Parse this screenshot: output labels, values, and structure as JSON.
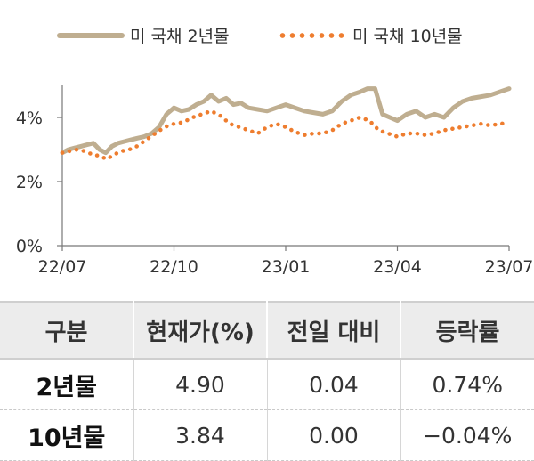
{
  "chart_data": {
    "type": "line",
    "xlabel": "",
    "ylabel": "",
    "x_ticks": [
      "22/07",
      "22/10",
      "23/01",
      "23/04",
      "23/07"
    ],
    "y_ticks": [
      "0%",
      "2%",
      "4%"
    ],
    "ylim": [
      0,
      5
    ],
    "legend_position": "top",
    "grid": false,
    "series": [
      {
        "name": "미 국채 2년물",
        "color": "#bfae90",
        "style": "solid",
        "points": [
          [
            "22/07",
            2.9
          ],
          [
            "22/07",
            3.0
          ],
          [
            "22/07",
            3.05
          ],
          [
            "22/07",
            3.1
          ],
          [
            "22/07",
            3.15
          ],
          [
            "22/07",
            3.2
          ],
          [
            "22/08",
            3.0
          ],
          [
            "22/08",
            2.9
          ],
          [
            "22/08",
            3.1
          ],
          [
            "22/08",
            3.2
          ],
          [
            "22/08",
            3.25
          ],
          [
            "22/08",
            3.3
          ],
          [
            "22/09",
            3.35
          ],
          [
            "22/09",
            3.4
          ],
          [
            "22/09",
            3.5
          ],
          [
            "22/09",
            3.7
          ],
          [
            "22/09",
            4.1
          ],
          [
            "22/10",
            4.3
          ],
          [
            "22/10",
            4.2
          ],
          [
            "22/10",
            4.25
          ],
          [
            "22/10",
            4.4
          ],
          [
            "22/10",
            4.5
          ],
          [
            "22/11",
            4.7
          ],
          [
            "22/11",
            4.5
          ],
          [
            "22/11",
            4.6
          ],
          [
            "22/11",
            4.4
          ],
          [
            "22/11",
            4.45
          ],
          [
            "22/12",
            4.3
          ],
          [
            "22/12",
            4.25
          ],
          [
            "22/12",
            4.2
          ],
          [
            "22/12",
            4.3
          ],
          [
            "23/01",
            4.4
          ],
          [
            "23/01",
            4.3
          ],
          [
            "23/01",
            4.2
          ],
          [
            "23/01",
            4.15
          ],
          [
            "23/02",
            4.1
          ],
          [
            "23/02",
            4.2
          ],
          [
            "23/02",
            4.5
          ],
          [
            "23/02",
            4.7
          ],
          [
            "23/03",
            4.8
          ],
          [
            "23/03",
            4.9
          ],
          [
            "23/03",
            4.9
          ],
          [
            "23/03",
            4.1
          ],
          [
            "23/03",
            4.0
          ],
          [
            "23/04",
            3.9
          ],
          [
            "23/04",
            4.1
          ],
          [
            "23/04",
            4.2
          ],
          [
            "23/04",
            4.0
          ],
          [
            "23/05",
            4.1
          ],
          [
            "23/05",
            4.0
          ],
          [
            "23/05",
            4.3
          ],
          [
            "23/05",
            4.5
          ],
          [
            "23/06",
            4.6
          ],
          [
            "23/06",
            4.65
          ],
          [
            "23/06",
            4.7
          ],
          [
            "23/06",
            4.8
          ],
          [
            "23/07",
            4.9
          ]
        ]
      },
      {
        "name": "미 국채 10년물",
        "color": "#ee7d2f",
        "style": "dotted",
        "points": [
          [
            "22/07",
            2.9
          ],
          [
            "22/07",
            2.95
          ],
          [
            "22/07",
            3.0
          ],
          [
            "22/07",
            2.95
          ],
          [
            "22/07",
            2.85
          ],
          [
            "22/08",
            2.8
          ],
          [
            "22/08",
            2.7
          ],
          [
            "22/08",
            2.85
          ],
          [
            "22/08",
            2.95
          ],
          [
            "22/08",
            3.0
          ],
          [
            "22/09",
            3.1
          ],
          [
            "22/09",
            3.3
          ],
          [
            "22/09",
            3.5
          ],
          [
            "22/09",
            3.7
          ],
          [
            "22/10",
            3.8
          ],
          [
            "22/10",
            3.85
          ],
          [
            "22/10",
            4.0
          ],
          [
            "22/10",
            4.1
          ],
          [
            "22/11",
            4.2
          ],
          [
            "22/11",
            4.05
          ],
          [
            "22/11",
            3.8
          ],
          [
            "22/11",
            3.7
          ],
          [
            "22/12",
            3.6
          ],
          [
            "22/12",
            3.5
          ],
          [
            "22/12",
            3.7
          ],
          [
            "22/12",
            3.8
          ],
          [
            "23/01",
            3.7
          ],
          [
            "23/01",
            3.55
          ],
          [
            "23/01",
            3.45
          ],
          [
            "23/01",
            3.5
          ],
          [
            "23/02",
            3.5
          ],
          [
            "23/02",
            3.6
          ],
          [
            "23/02",
            3.8
          ],
          [
            "23/02",
            3.9
          ],
          [
            "23/03",
            4.0
          ],
          [
            "23/03",
            3.9
          ],
          [
            "23/03",
            3.6
          ],
          [
            "23/03",
            3.5
          ],
          [
            "23/04",
            3.4
          ],
          [
            "23/04",
            3.5
          ],
          [
            "23/04",
            3.5
          ],
          [
            "23/04",
            3.45
          ],
          [
            "23/05",
            3.5
          ],
          [
            "23/05",
            3.6
          ],
          [
            "23/05",
            3.65
          ],
          [
            "23/05",
            3.7
          ],
          [
            "23/06",
            3.75
          ],
          [
            "23/06",
            3.8
          ],
          [
            "23/06",
            3.75
          ],
          [
            "23/06",
            3.8
          ],
          [
            "23/07",
            3.84
          ]
        ]
      }
    ]
  },
  "legend": {
    "series_2y": "미 국채 2년물",
    "series_10y": "미 국채 10년물"
  },
  "table": {
    "headers": [
      "구분",
      "현재가(%)",
      "전일 대비",
      "등락률"
    ],
    "rows": [
      {
        "label": "2년물",
        "price": "4.90",
        "change": "0.04",
        "rate": "0.74%"
      },
      {
        "label": "10년물",
        "price": "3.84",
        "change": "0.00",
        "rate": "−0.04%"
      }
    ]
  }
}
